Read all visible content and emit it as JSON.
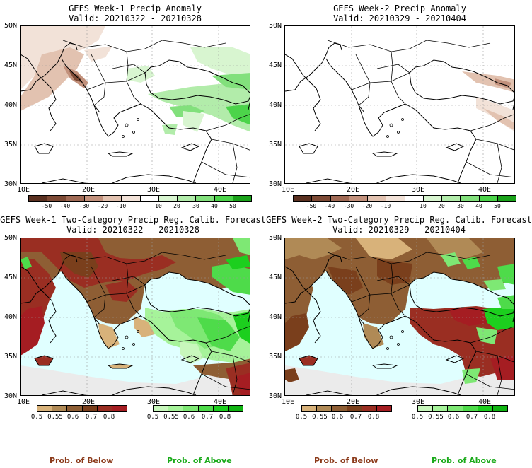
{
  "panels": [
    {
      "title_line1": "GEFS Week-1 Precip Anomaly",
      "title_line2": "Valid: 20210322 - 20210328"
    },
    {
      "title_line1": "GEFS Week-2 Precip Anomaly",
      "title_line2": "Valid: 20210329 - 20210404"
    },
    {
      "title_line1": "GEFS Week-1 Two-Category Precip Reg. Calib. Forecast",
      "title_line2": "Valid: 20210322 - 20210328"
    },
    {
      "title_line1": "GEFS Week-2 Two-Category Precip Reg. Calib. Forecast",
      "title_line2": "Valid: 20210329 - 20210404"
    }
  ],
  "lat_labels": [
    "50N",
    "45N",
    "40N",
    "35N",
    "30N"
  ],
  "lon_labels": [
    "10E",
    "20E",
    "30E",
    "40E"
  ],
  "anomaly_colorbar": {
    "ticks": [
      "-50",
      "-40",
      "-30",
      "-20",
      "-10",
      "10",
      "20",
      "30",
      "40",
      "50"
    ],
    "colors": [
      "#5a3020",
      "#7d4a35",
      "#a06a55",
      "#c2917c",
      "#e2c2b0",
      "#f2e2d8",
      "#ffffff",
      "#d8f5d0",
      "#b2ecaa",
      "#82e07c",
      "#4cd44a",
      "#1aa21a"
    ]
  },
  "prob_colorbar_below": {
    "ticks": [
      "0.5",
      "0.55",
      "0.6",
      "0.7",
      "0.8"
    ],
    "colors": [
      "#d8b27a",
      "#b08a56",
      "#8e5e34",
      "#7a3f1c",
      "#9a2e22",
      "#a51d22"
    ]
  },
  "prob_colorbar_above": {
    "ticks": [
      "0.5",
      "0.55",
      "0.6",
      "0.7",
      "0.8"
    ],
    "colors": [
      "#c8f7bc",
      "#a6f39a",
      "#7ee874",
      "#4edb4a",
      "#1ccf1e",
      "#10b412"
    ]
  },
  "legend": {
    "below_label": "Prob. of Below",
    "above_label": "Prob. of Above"
  },
  "colors": {
    "below_text": "#8b3a1a",
    "above_text": "#1aaa1a",
    "sea": "#e0ffff",
    "land_gray": "#ebebeb"
  }
}
